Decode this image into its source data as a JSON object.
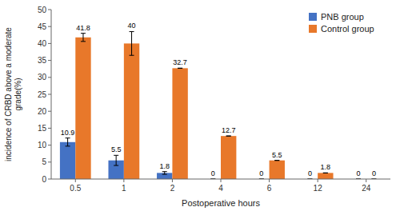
{
  "chart_data": {
    "type": "bar",
    "categories": [
      "0.5",
      "1",
      "2",
      "4",
      "6",
      "12",
      "24"
    ],
    "series": [
      {
        "name": "PNB group",
        "color": "#4472C4",
        "values": [
          10.9,
          5.5,
          1.8,
          0,
          0,
          0,
          0
        ],
        "errors": [
          1.2,
          1.5,
          0.4,
          0,
          0,
          0,
          0
        ]
      },
      {
        "name": "Control group",
        "color": "#E8782A",
        "values": [
          41.8,
          40,
          32.7,
          12.7,
          5.5,
          1.8,
          0
        ],
        "errors": [
          1.2,
          3.5,
          0,
          0,
          0,
          0,
          0
        ]
      }
    ],
    "x_label": "Postoperative hours",
    "y_label": "incidence of CRBD above a moderate\ngrade(%)",
    "ylim": [
      0,
      50
    ],
    "yticks": [
      0,
      5,
      10,
      15,
      20,
      25,
      30,
      35,
      40,
      45,
      50
    ],
    "data_labels": true,
    "legend": "upper right",
    "grid": false
  }
}
